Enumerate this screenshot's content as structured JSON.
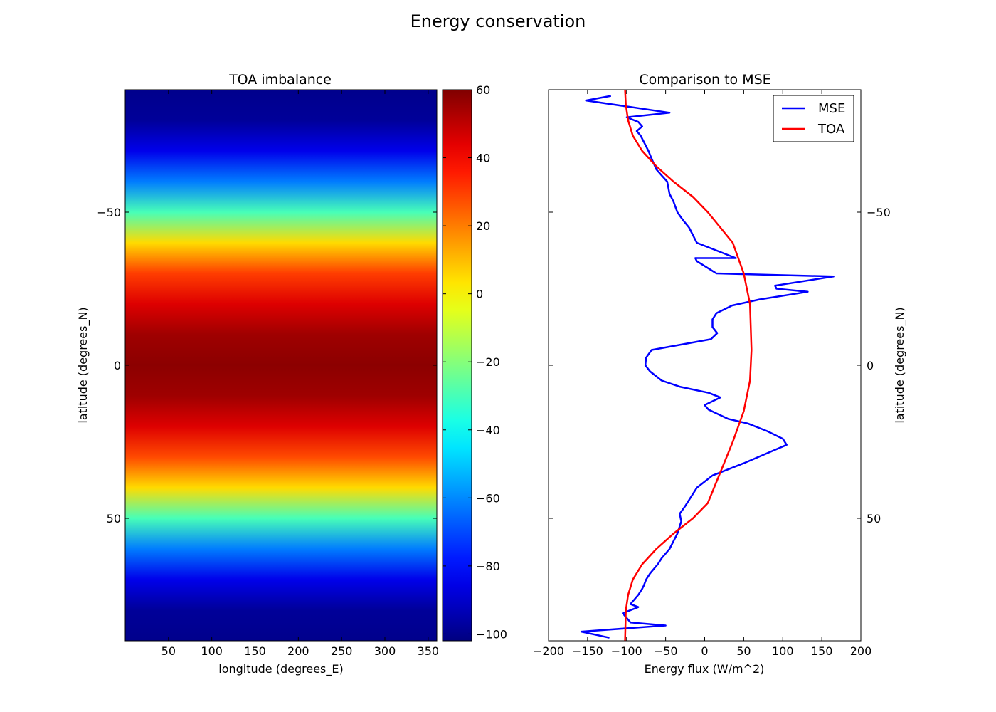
{
  "figure": {
    "suptitle": "Energy conservation"
  },
  "chart_data": [
    {
      "type": "heatmap",
      "title": "TOA imbalance",
      "xlabel": "longitude (degrees_E)",
      "ylabel": "latitude (degrees_N)",
      "xlim": [
        0,
        360
      ],
      "ylim": [
        -90,
        90
      ],
      "y_inverted": true,
      "xticks": [
        50,
        100,
        150,
        200,
        250,
        300,
        350
      ],
      "xtick_labels": [
        "50",
        "100",
        "150",
        "200",
        "250",
        "300",
        "350"
      ],
      "yticks": [
        -50,
        0,
        50
      ],
      "ytick_labels": [
        "−50",
        "0",
        "50"
      ],
      "colormap": "jet",
      "zonal_profile": {
        "latitude": [
          -90,
          -80,
          -70,
          -60,
          -50,
          -40,
          -30,
          -20,
          -10,
          0,
          10,
          20,
          30,
          40,
          50,
          60,
          70,
          80,
          90
        ],
        "value": [
          -100,
          -98,
          -85,
          -62,
          -30,
          5,
          30,
          45,
          55,
          58,
          55,
          45,
          28,
          5,
          -30,
          -62,
          -85,
          -98,
          -100
        ]
      },
      "colorbar": {
        "range": [
          -102,
          60
        ],
        "ticks": [
          60,
          40,
          20,
          0,
          -20,
          -40,
          -60,
          -80,
          -100
        ],
        "tick_labels": [
          "60",
          "40",
          "20",
          "0",
          "−20",
          "−40",
          "−60",
          "−80",
          "−100"
        ]
      }
    },
    {
      "type": "line",
      "title": "Comparison to MSE",
      "xlabel": "Energy flux (W/m^2)",
      "ylabel": "latitude (degrees_N)",
      "xlim": [
        -200,
        200
      ],
      "ylim": [
        -90,
        90
      ],
      "y_inverted": true,
      "xticks": [
        -200,
        -150,
        -100,
        -50,
        0,
        50,
        100,
        150,
        200
      ],
      "xtick_labels": [
        "−200",
        "−150",
        "−100",
        "−50",
        "0",
        "50",
        "100",
        "150",
        "200"
      ],
      "yticks": [
        -50,
        0,
        50
      ],
      "ytick_labels": [
        "−50",
        "0",
        "50"
      ],
      "legend_position": "top-right",
      "series": [
        {
          "name": "MSE",
          "color": "#0000ff",
          "x": [
            -120,
            -152,
            -45,
            -100,
            -85,
            -80,
            -87,
            -82,
            -78,
            -72,
            -68,
            -62,
            -55,
            -48,
            -45,
            -40,
            -35,
            -28,
            -20,
            -12,
            -10,
            40,
            -12,
            -10,
            15,
            165,
            90,
            92,
            132,
            70,
            35,
            15,
            10,
            10,
            16,
            8,
            -68,
            -75,
            -76,
            -70,
            -55,
            -32,
            5,
            20,
            0,
            5,
            30,
            55,
            80,
            100,
            105,
            50,
            10,
            -10,
            -25,
            -32,
            -30,
            -35,
            -45,
            -55,
            -60,
            -70,
            -75,
            -78,
            -80,
            -85,
            -95,
            -85,
            -105,
            -95,
            -50,
            -158,
            -122
          ],
          "y": [
            -88,
            -86.5,
            -82.5,
            -81,
            -79.5,
            -78,
            -76.5,
            -75,
            -73,
            -70,
            -67.5,
            -64,
            -62,
            -60,
            -56,
            -53.5,
            -50,
            -47.5,
            -45,
            -41,
            -40,
            -35,
            -35,
            -34,
            -30,
            -29,
            -26,
            -25,
            -24,
            -21.5,
            -19.5,
            -17,
            -15,
            -12.5,
            -10.5,
            -8.5,
            -5,
            -2.5,
            0,
            2,
            5,
            7,
            9,
            10.5,
            13,
            14.5,
            17.5,
            19,
            21.5,
            24,
            26,
            32,
            36,
            40,
            46,
            48.5,
            51,
            55,
            60,
            63,
            65,
            68,
            70,
            72,
            73,
            75,
            78,
            79,
            81,
            84,
            85,
            87,
            89
          ]
        },
        {
          "name": "TOA",
          "color": "#ff0000",
          "x": [
            -102,
            -101,
            -98,
            -92,
            -80,
            -62,
            -40,
            -15,
            4,
            20,
            36,
            50,
            58,
            60,
            58,
            50,
            36,
            20,
            4,
            -15,
            -40,
            -62,
            -80,
            -92,
            -98,
            -101,
            -102
          ],
          "y": [
            -90,
            -85,
            -80,
            -75,
            -70,
            -65,
            -60,
            -55,
            -50,
            -45,
            -40,
            -30,
            -20,
            -5,
            5,
            15,
            25,
            35,
            45,
            50,
            55,
            60,
            65,
            70,
            75,
            80,
            90
          ]
        }
      ]
    }
  ]
}
